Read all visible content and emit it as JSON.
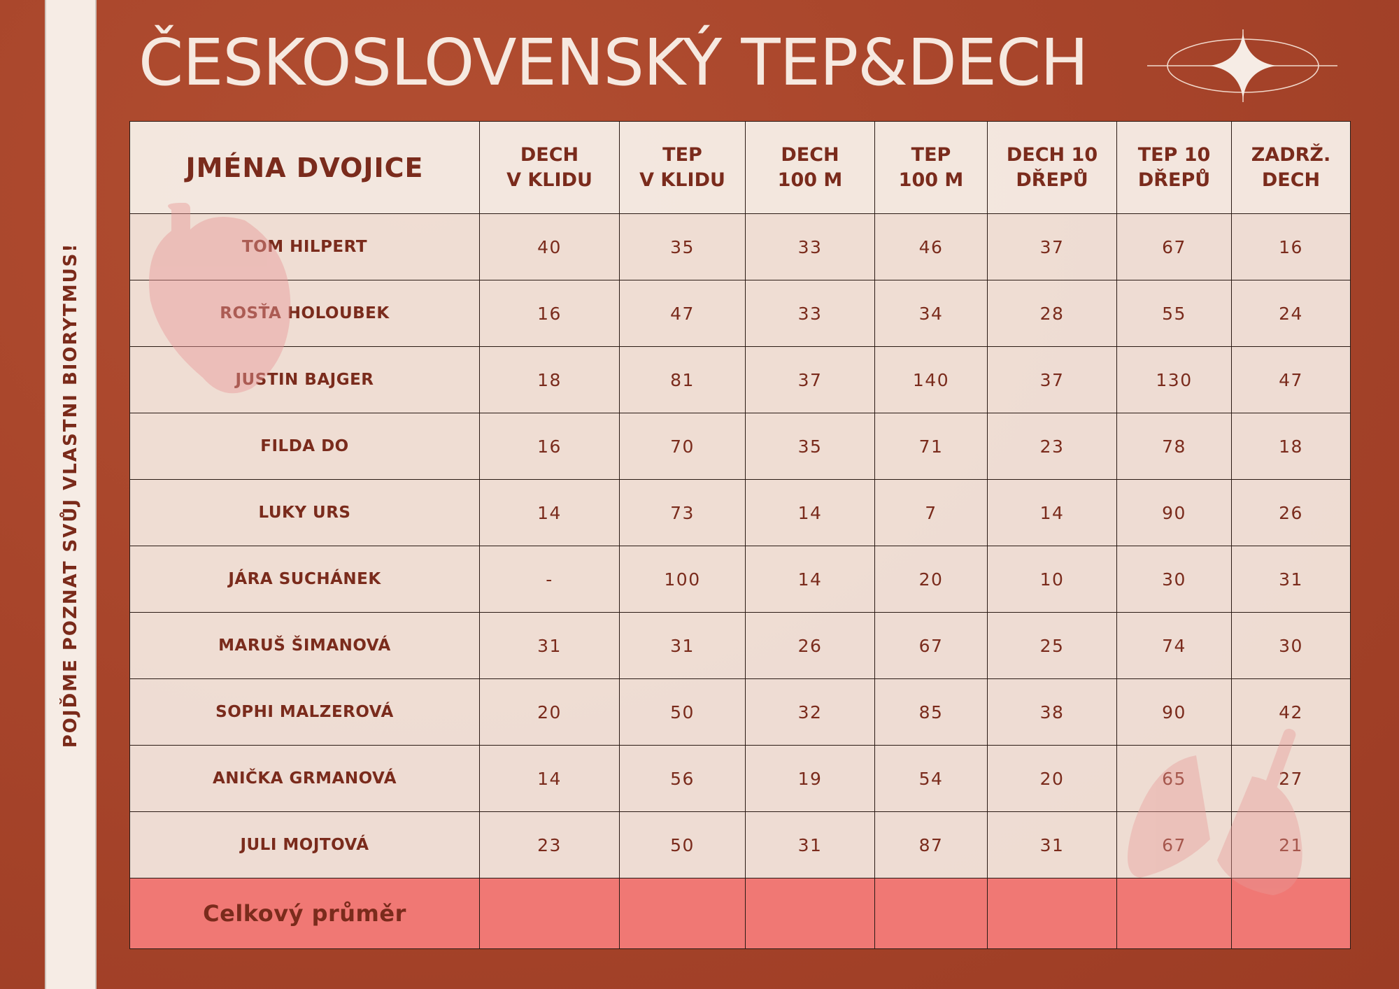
{
  "title": "ČESKOSLOVENSKÝ TEP&DECH",
  "side_text": "POJĎME POZNAT SVŮJ VLASTNI BIORYTMUS!",
  "table": {
    "header": [
      [
        "JMÉNA DVOJICE"
      ],
      [
        "DECH",
        "V KLIDU"
      ],
      [
        "TEP",
        "V KLIDU"
      ],
      [
        "DECH",
        "100 M"
      ],
      [
        "TEP",
        "100 M"
      ],
      [
        "DECH 10",
        "DŘEPŮ"
      ],
      [
        "TEP 10",
        "DŘEPŮ"
      ],
      [
        "ZADRŽ.",
        "DECH"
      ]
    ],
    "rows": [
      {
        "name": "TOM HILPERT",
        "values": [
          40,
          35,
          33,
          46,
          37,
          67,
          16
        ]
      },
      {
        "name": "ROSŤA HOLOUBEK",
        "values": [
          16,
          47,
          33,
          34,
          28,
          55,
          24
        ]
      },
      {
        "name": "JUSTIN BAJGER",
        "values": [
          18,
          81,
          37,
          140,
          37,
          130,
          47
        ]
      },
      {
        "name": "FILDA DO",
        "values": [
          16,
          70,
          35,
          71,
          23,
          78,
          18
        ]
      },
      {
        "name": "LUKY URS",
        "values": [
          14,
          73,
          14,
          7,
          14,
          90,
          26
        ]
      },
      {
        "name": "JÁRA SUCHÁNEK",
        "values": [
          "-",
          100,
          14,
          20,
          10,
          30,
          31
        ]
      },
      {
        "name": "MARUŠ ŠIMANOVÁ",
        "values": [
          31,
          31,
          26,
          67,
          25,
          74,
          30
        ]
      },
      {
        "name": "SOPHI MALZEROVÁ",
        "values": [
          20,
          50,
          32,
          85,
          38,
          90,
          42
        ]
      },
      {
        "name": "ANIČKA GRMANOVÁ",
        "values": [
          14,
          56,
          19,
          54,
          20,
          65,
          27
        ]
      },
      {
        "name": "JULI MOJTOVÁ",
        "values": [
          23,
          50,
          31,
          87,
          31,
          67,
          21
        ]
      }
    ],
    "footer": "Celkový průměr"
  }
}
